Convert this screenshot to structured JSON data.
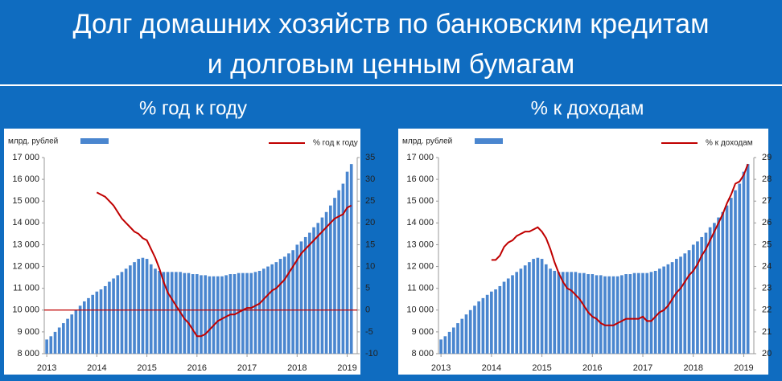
{
  "title_lines": [
    "Долг домашних хозяйств по банковским кредитам",
    "и долговым ценным бумагам"
  ],
  "chart_data": [
    {
      "type": "combo",
      "title": "% год к году",
      "legend": "top",
      "x": [
        2013,
        2013.083,
        2013.167,
        2013.25,
        2013.333,
        2013.417,
        2013.5,
        2013.583,
        2013.667,
        2013.75,
        2013.833,
        2013.917,
        2014,
        2014.083,
        2014.167,
        2014.25,
        2014.333,
        2014.417,
        2014.5,
        2014.583,
        2014.667,
        2014.75,
        2014.833,
        2014.917,
        2015,
        2015.083,
        2015.167,
        2015.25,
        2015.333,
        2015.417,
        2015.5,
        2015.583,
        2015.667,
        2015.75,
        2015.833,
        2015.917,
        2016,
        2016.083,
        2016.167,
        2016.25,
        2016.333,
        2016.417,
        2016.5,
        2016.583,
        2016.667,
        2016.75,
        2016.833,
        2016.917,
        2017,
        2017.083,
        2017.167,
        2017.25,
        2017.333,
        2017.417,
        2017.5,
        2017.583,
        2017.667,
        2017.75,
        2017.833,
        2017.917,
        2018,
        2018.083,
        2018.167,
        2018.25,
        2018.333,
        2018.417,
        2018.5,
        2018.583,
        2018.667,
        2018.75,
        2018.833,
        2018.917,
        2019,
        2019.083
      ],
      "xlim": [
        2012.95,
        2019.2
      ],
      "xticks": [
        2013,
        2014,
        2015,
        2016,
        2017,
        2018,
        2019
      ],
      "ylim": [
        8000,
        17000
      ],
      "yticks": [
        {
          "value": 8000,
          "label": "8 000"
        },
        {
          "value": 9000,
          "label": "9 000"
        },
        {
          "value": 10000,
          "label": "10 000"
        },
        {
          "value": 11000,
          "label": "11 000"
        },
        {
          "value": 12000,
          "label": "12 000"
        },
        {
          "value": 13000,
          "label": "13 000"
        },
        {
          "value": 14000,
          "label": "14 000"
        },
        {
          "value": 15000,
          "label": "15 000"
        },
        {
          "value": 16000,
          "label": "16 000"
        },
        {
          "value": 17000,
          "label": "17 000"
        }
      ],
      "y2lim": [
        -10,
        35
      ],
      "y2ticks": [
        -10,
        -5,
        0,
        5,
        10,
        15,
        20,
        25,
        30,
        35
      ],
      "series": [
        {
          "name": "млрд. рублей",
          "type": "bar",
          "color": "#4a86cf",
          "values": [
            8650,
            8800,
            9000,
            9200,
            9400,
            9600,
            9800,
            10000,
            10200,
            10400,
            10550,
            10700,
            10850,
            10950,
            11100,
            11300,
            11450,
            11600,
            11750,
            11900,
            12050,
            12200,
            12350,
            12400,
            12350,
            12100,
            11900,
            11800,
            11750,
            11750,
            11750,
            11750,
            11750,
            11700,
            11700,
            11650,
            11650,
            11600,
            11600,
            11550,
            11550,
            11550,
            11550,
            11600,
            11650,
            11650,
            11700,
            11700,
            11700,
            11700,
            11750,
            11800,
            11900,
            12000,
            12100,
            12200,
            12350,
            12450,
            12600,
            12750,
            13000,
            13150,
            13350,
            13550,
            13800,
            14000,
            14250,
            14500,
            14800,
            15150,
            15500,
            15800,
            16350,
            16700
          ]
        },
        {
          "name": "% год к году",
          "type": "line",
          "axis": "y2",
          "color": "#c00000",
          "values": [
            null,
            null,
            null,
            null,
            null,
            null,
            null,
            null,
            null,
            null,
            null,
            null,
            27,
            26.5,
            26,
            25,
            24,
            22.5,
            21,
            20,
            19,
            18,
            17.5,
            16.5,
            16,
            14,
            12,
            9.5,
            6.5,
            4,
            2.5,
            1,
            -0.5,
            -2,
            -3,
            -4.5,
            -6,
            -6,
            -5.5,
            -4.5,
            -3.5,
            -2.5,
            -2,
            -1.5,
            -1,
            -1,
            -0.5,
            0,
            0.5,
            0.5,
            1,
            1.5,
            2.5,
            3.5,
            4.5,
            5,
            6,
            7,
            8.5,
            10,
            11.5,
            13,
            14,
            15,
            16,
            17,
            18,
            19,
            20,
            21,
            21.5,
            22,
            23.5,
            24
          ]
        }
      ]
    },
    {
      "type": "combo",
      "title": "% к доходам",
      "legend": "top",
      "x": [
        2013,
        2013.083,
        2013.167,
        2013.25,
        2013.333,
        2013.417,
        2013.5,
        2013.583,
        2013.667,
        2013.75,
        2013.833,
        2013.917,
        2014,
        2014.083,
        2014.167,
        2014.25,
        2014.333,
        2014.417,
        2014.5,
        2014.583,
        2014.667,
        2014.75,
        2014.833,
        2014.917,
        2015,
        2015.083,
        2015.167,
        2015.25,
        2015.333,
        2015.417,
        2015.5,
        2015.583,
        2015.667,
        2015.75,
        2015.833,
        2015.917,
        2016,
        2016.083,
        2016.167,
        2016.25,
        2016.333,
        2016.417,
        2016.5,
        2016.583,
        2016.667,
        2016.75,
        2016.833,
        2016.917,
        2017,
        2017.083,
        2017.167,
        2017.25,
        2017.333,
        2017.417,
        2017.5,
        2017.583,
        2017.667,
        2017.75,
        2017.833,
        2017.917,
        2018,
        2018.083,
        2018.167,
        2018.25,
        2018.333,
        2018.417,
        2018.5,
        2018.583,
        2018.667,
        2018.75,
        2018.833,
        2018.917,
        2019,
        2019.083
      ],
      "xlim": [
        2012.95,
        2019.2
      ],
      "xticks": [
        2013,
        2014,
        2015,
        2016,
        2017,
        2018,
        2019
      ],
      "ylim": [
        8000,
        17000
      ],
      "yticks": [
        {
          "value": 8000,
          "label": "8 000"
        },
        {
          "value": 9000,
          "label": "9 000"
        },
        {
          "value": 10000,
          "label": "10 000"
        },
        {
          "value": 11000,
          "label": "11 000"
        },
        {
          "value": 12000,
          "label": "12 000"
        },
        {
          "value": 13000,
          "label": "13 000"
        },
        {
          "value": 14000,
          "label": "14 000"
        },
        {
          "value": 15000,
          "label": "15 000"
        },
        {
          "value": 16000,
          "label": "16 000"
        },
        {
          "value": 17000,
          "label": "17 000"
        }
      ],
      "y2lim": [
        20,
        29
      ],
      "y2ticks": [
        20,
        21,
        22,
        23,
        24,
        25,
        26,
        27,
        28,
        29
      ],
      "series": [
        {
          "name": "млрд. рублей",
          "type": "bar",
          "color": "#4a86cf",
          "values": [
            8650,
            8800,
            9000,
            9200,
            9400,
            9600,
            9800,
            10000,
            10200,
            10400,
            10550,
            10700,
            10850,
            10950,
            11100,
            11300,
            11450,
            11600,
            11750,
            11900,
            12050,
            12200,
            12350,
            12400,
            12350,
            12100,
            11900,
            11800,
            11750,
            11750,
            11750,
            11750,
            11750,
            11700,
            11700,
            11650,
            11650,
            11600,
            11600,
            11550,
            11550,
            11550,
            11550,
            11600,
            11650,
            11650,
            11700,
            11700,
            11700,
            11700,
            11750,
            11800,
            11900,
            12000,
            12100,
            12200,
            12350,
            12450,
            12600,
            12750,
            13000,
            13150,
            13350,
            13550,
            13800,
            14000,
            14250,
            14500,
            14800,
            15150,
            15500,
            15800,
            16350,
            16700
          ]
        },
        {
          "name": "%  к доходам",
          "type": "line",
          "axis": "y2",
          "color": "#c00000",
          "values": [
            null,
            null,
            null,
            null,
            null,
            null,
            null,
            null,
            null,
            null,
            null,
            null,
            24.3,
            24.3,
            24.5,
            24.9,
            25.1,
            25.2,
            25.4,
            25.5,
            25.6,
            25.6,
            25.7,
            25.8,
            25.6,
            25.3,
            24.8,
            24.2,
            23.7,
            23.3,
            23.0,
            22.9,
            22.7,
            22.5,
            22.2,
            21.9,
            21.7,
            21.6,
            21.4,
            21.3,
            21.3,
            21.3,
            21.4,
            21.5,
            21.6,
            21.6,
            21.6,
            21.6,
            21.7,
            21.5,
            21.5,
            21.7,
            21.9,
            22.0,
            22.2,
            22.5,
            22.8,
            23.0,
            23.3,
            23.6,
            23.8,
            24.1,
            24.5,
            24.8,
            25.2,
            25.6,
            26.0,
            26.4,
            26.9,
            27.3,
            27.8,
            27.9,
            28.2,
            28.7
          ]
        }
      ]
    }
  ]
}
